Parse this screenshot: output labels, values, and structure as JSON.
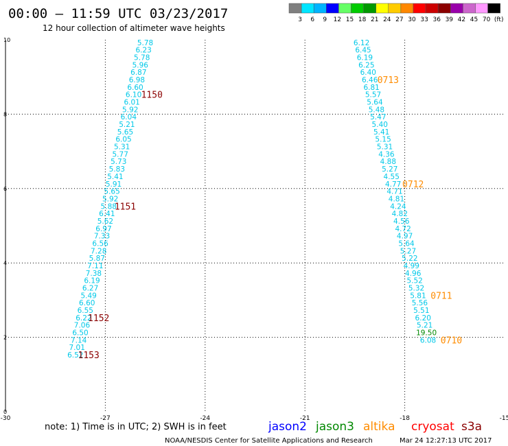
{
  "header": {
    "title": "00:00 – 11:59 UTC 03/23/2017",
    "subtitle": "12 hour collection of altimeter wave heights"
  },
  "colorbar": {
    "colors": [
      "#7f7f7f",
      "#00e5ff",
      "#00b4ff",
      "#0000ff",
      "#66ff66",
      "#00cc00",
      "#009900",
      "#ffff00",
      "#ffcc00",
      "#ff8800",
      "#ff0000",
      "#cc0000",
      "#8b0000",
      "#9900aa",
      "#cc66cc",
      "#ff99ff",
      "#000000"
    ],
    "labels": [
      "3",
      "6",
      "9",
      "12",
      "15",
      "18",
      "21",
      "24",
      "27",
      "30",
      "33",
      "36",
      "39",
      "42",
      "45",
      "70",
      "(ft)"
    ]
  },
  "chart_data": {
    "type": "scatter",
    "title": "00:00 – 11:59 UTC 03/23/2017",
    "subtitle": "12 hour collection of altimeter wave heights",
    "xlim": [
      -30,
      -15
    ],
    "ylim": [
      0,
      10
    ],
    "x_ticks": [
      "-30",
      "-27",
      "-24",
      "-21",
      "-18",
      "-15"
    ],
    "y_ticks": [
      "0",
      "2",
      "4",
      "6",
      "8",
      "10"
    ],
    "grid": true,
    "series": [
      {
        "name": "jason2",
        "color": "#00c8e8",
        "points": [
          {
            "x": -25.8,
            "y": 9.93,
            "label": "5.78"
          },
          {
            "x": -25.85,
            "y": 9.73,
            "label": "6.23"
          },
          {
            "x": -25.9,
            "y": 9.53,
            "label": "5.78"
          },
          {
            "x": -25.95,
            "y": 9.33,
            "label": "5.96"
          },
          {
            "x": -26.0,
            "y": 9.13,
            "label": "6.87"
          },
          {
            "x": -26.05,
            "y": 8.93,
            "label": "6.98"
          },
          {
            "x": -26.1,
            "y": 8.73,
            "label": "6.60"
          },
          {
            "x": -26.15,
            "y": 8.53,
            "label": "6.10"
          },
          {
            "x": -26.2,
            "y": 8.33,
            "label": "6.01"
          },
          {
            "x": -26.25,
            "y": 8.13,
            "label": "5.92"
          },
          {
            "x": -26.3,
            "y": 7.93,
            "label": "6.04"
          },
          {
            "x": -26.35,
            "y": 7.73,
            "label": "5.21"
          },
          {
            "x": -26.4,
            "y": 7.53,
            "label": "5.65"
          },
          {
            "x": -26.45,
            "y": 7.33,
            "label": "6.05"
          },
          {
            "x": -26.5,
            "y": 7.13,
            "label": "5.31"
          },
          {
            "x": -26.55,
            "y": 6.93,
            "label": "5.77"
          },
          {
            "x": -26.6,
            "y": 6.73,
            "label": "5.73"
          },
          {
            "x": -26.65,
            "y": 6.53,
            "label": "5.83"
          },
          {
            "x": -26.7,
            "y": 6.33,
            "label": "5.41"
          },
          {
            "x": -26.75,
            "y": 6.13,
            "label": "5.91"
          },
          {
            "x": -26.8,
            "y": 5.93,
            "label": "5.65"
          },
          {
            "x": -26.85,
            "y": 5.73,
            "label": "5.92"
          },
          {
            "x": -26.9,
            "y": 5.53,
            "label": "5.88"
          },
          {
            "x": -26.95,
            "y": 5.33,
            "label": "6.41"
          },
          {
            "x": -27.0,
            "y": 5.13,
            "label": "5.62"
          },
          {
            "x": -27.05,
            "y": 4.93,
            "label": "6.97"
          },
          {
            "x": -27.1,
            "y": 4.73,
            "label": "7.33"
          },
          {
            "x": -27.15,
            "y": 4.53,
            "label": "6.56"
          },
          {
            "x": -27.2,
            "y": 4.33,
            "label": "7.28"
          },
          {
            "x": -27.25,
            "y": 4.13,
            "label": "5.87"
          },
          {
            "x": -27.3,
            "y": 3.93,
            "label": "7.11"
          },
          {
            "x": -27.35,
            "y": 3.73,
            "label": "7.38"
          },
          {
            "x": -27.4,
            "y": 3.53,
            "label": "6.19"
          },
          {
            "x": -27.45,
            "y": 3.33,
            "label": "6.27"
          },
          {
            "x": -27.5,
            "y": 3.13,
            "label": "5.49"
          },
          {
            "x": -27.55,
            "y": 2.93,
            "label": "6.60"
          },
          {
            "x": -27.6,
            "y": 2.73,
            "label": "6.55"
          },
          {
            "x": -27.65,
            "y": 2.53,
            "label": "6.22"
          },
          {
            "x": -27.7,
            "y": 2.33,
            "label": "7.06"
          },
          {
            "x": -27.75,
            "y": 2.13,
            "label": "6.50"
          },
          {
            "x": -27.8,
            "y": 1.93,
            "label": "7.14"
          },
          {
            "x": -27.85,
            "y": 1.73,
            "label": "7.01"
          },
          {
            "x": -27.9,
            "y": 1.53,
            "label": "6.52"
          },
          {
            "x": -19.3,
            "y": 9.93,
            "label": "6.12"
          },
          {
            "x": -19.25,
            "y": 9.73,
            "label": "6.45"
          },
          {
            "x": -19.2,
            "y": 9.53,
            "label": "6.19"
          },
          {
            "x": -19.15,
            "y": 9.33,
            "label": "6.25"
          },
          {
            "x": -19.1,
            "y": 9.13,
            "label": "6.40"
          },
          {
            "x": -19.05,
            "y": 8.93,
            "label": "6.46"
          },
          {
            "x": -19.0,
            "y": 8.73,
            "label": "6.81"
          },
          {
            "x": -18.95,
            "y": 8.53,
            "label": "5.57"
          },
          {
            "x": -18.9,
            "y": 8.33,
            "label": "5.64"
          },
          {
            "x": -18.85,
            "y": 8.13,
            "label": "5.48"
          },
          {
            "x": -18.8,
            "y": 7.93,
            "label": "5.47"
          },
          {
            "x": -18.75,
            "y": 7.73,
            "label": "5.40"
          },
          {
            "x": -18.7,
            "y": 7.53,
            "label": "5.41"
          },
          {
            "x": -18.65,
            "y": 7.33,
            "label": "5.15"
          },
          {
            "x": -18.6,
            "y": 7.13,
            "label": "5.31"
          },
          {
            "x": -18.55,
            "y": 6.93,
            "label": "4.36"
          },
          {
            "x": -18.5,
            "y": 6.73,
            "label": "4.88"
          },
          {
            "x": -18.45,
            "y": 6.53,
            "label": "5.27"
          },
          {
            "x": -18.4,
            "y": 6.33,
            "label": "4.55"
          },
          {
            "x": -18.35,
            "y": 6.13,
            "label": "4.77"
          },
          {
            "x": -18.3,
            "y": 5.93,
            "label": "4.71"
          },
          {
            "x": -18.25,
            "y": 5.73,
            "label": "4.81"
          },
          {
            "x": -18.2,
            "y": 5.53,
            "label": "4.24"
          },
          {
            "x": -18.15,
            "y": 5.33,
            "label": "4.82"
          },
          {
            "x": -18.1,
            "y": 5.13,
            "label": "4.56"
          },
          {
            "x": -18.05,
            "y": 4.93,
            "label": "4.72"
          },
          {
            "x": -18.0,
            "y": 4.73,
            "label": "4.97"
          },
          {
            "x": -17.95,
            "y": 4.53,
            "label": "5.64"
          },
          {
            "x": -17.9,
            "y": 4.33,
            "label": "5.27"
          },
          {
            "x": -17.85,
            "y": 4.13,
            "label": "5.22"
          },
          {
            "x": -17.8,
            "y": 3.93,
            "label": "4.99"
          },
          {
            "x": -17.75,
            "y": 3.73,
            "label": "4.96"
          },
          {
            "x": -17.7,
            "y": 3.53,
            "label": "5.52"
          },
          {
            "x": -17.65,
            "y": 3.33,
            "label": "5.32"
          },
          {
            "x": -17.6,
            "y": 3.13,
            "label": "5.81"
          },
          {
            "x": -17.55,
            "y": 2.93,
            "label": "5.56"
          },
          {
            "x": -17.5,
            "y": 2.73,
            "label": "5.51"
          },
          {
            "x": -17.45,
            "y": 2.53,
            "label": "6.20"
          },
          {
            "x": -17.4,
            "y": 2.33,
            "label": "5.21"
          },
          {
            "x": -17.3,
            "y": 1.93,
            "label": "6.08"
          }
        ]
      },
      {
        "name": "jason3",
        "color": "#008800",
        "points": [
          {
            "x": -17.35,
            "y": 2.13,
            "label": "19.50"
          }
        ]
      }
    ],
    "time_labels": [
      {
        "text": "1150",
        "x": -25.6,
        "y": 8.53,
        "color": "#8b0000"
      },
      {
        "text": "1151",
        "x": -26.4,
        "y": 5.53,
        "color": "#8b0000"
      },
      {
        "text": "1152",
        "x": -27.2,
        "y": 2.53,
        "color": "#8b0000"
      },
      {
        "text": "1153",
        "x": -27.5,
        "y": 1.53,
        "color": "#8b0000"
      },
      {
        "text": "0713",
        "x": -18.5,
        "y": 8.93,
        "color": "#ff8c00"
      },
      {
        "text": "0712",
        "x": -17.75,
        "y": 6.13,
        "color": "#ff8c00"
      },
      {
        "text": "0711",
        "x": -16.9,
        "y": 3.13,
        "color": "#ff8c00"
      },
      {
        "text": "0710",
        "x": -16.6,
        "y": 1.93,
        "color": "#ff8c00"
      }
    ]
  },
  "footer": {
    "note": "note:  1) Time is in UTC; 2) SWH is in feet",
    "legend": [
      {
        "name": "jason2",
        "color": "#0000ff"
      },
      {
        "name": "jason3",
        "color": "#008800"
      },
      {
        "name": "altika",
        "color": "#ff8c00"
      },
      {
        "name": "cryosat",
        "color": "#ff0000"
      },
      {
        "name": "s3a",
        "color": "#8b0000"
      }
    ],
    "credit": "NOAA/NESDIS Center for Satellite Applications and Research",
    "timestamp": "Mar 24 12:27:13 UTC 2017"
  }
}
